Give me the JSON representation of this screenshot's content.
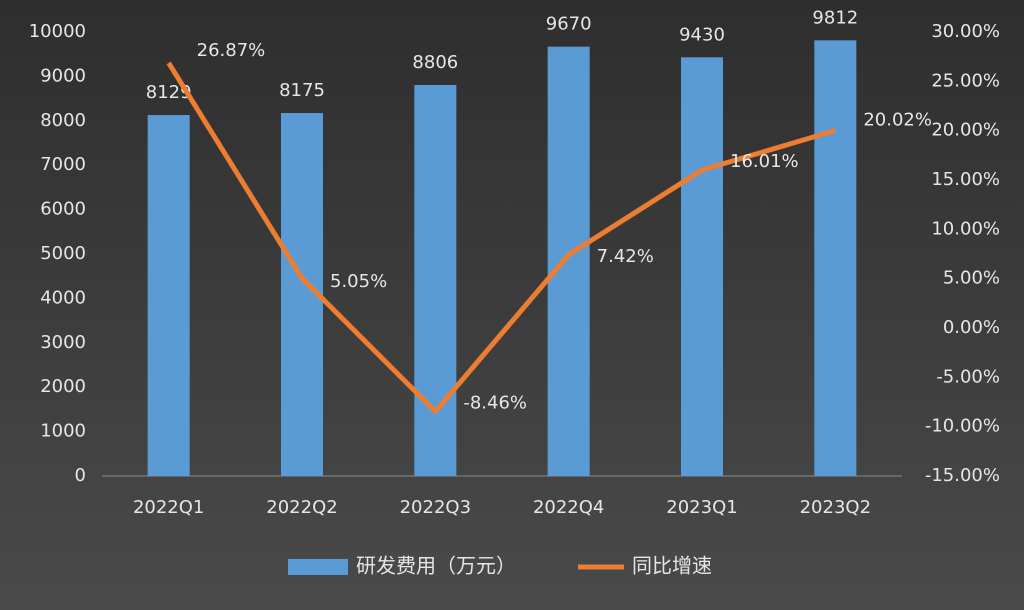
{
  "chart_data": {
    "type": "bar",
    "categories": [
      "2022Q1",
      "2022Q2",
      "2022Q3",
      "2022Q4",
      "2023Q1",
      "2023Q2"
    ],
    "series": [
      {
        "name": "研发费用（万元）",
        "color": "#5b9bd5",
        "type": "bar",
        "values": [
          8129,
          8175,
          8806,
          9670,
          9430,
          9812
        ]
      },
      {
        "name": "同比增速",
        "color": "#ed7d31",
        "type": "line",
        "axis": "y2",
        "values": [
          26.87,
          5.05,
          -8.46,
          7.42,
          16.01,
          20.02
        ],
        "value_labels": [
          "26.87%",
          "5.05%",
          "-8.46%",
          "7.42%",
          "16.01%",
          "20.02%"
        ]
      }
    ],
    "ylim": [
      0,
      10000
    ],
    "yticks": [
      0,
      1000,
      2000,
      3000,
      4000,
      5000,
      6000,
      7000,
      8000,
      9000,
      10000
    ],
    "y2lim": [
      -15,
      30
    ],
    "y2ticks": [
      {
        "value": -15,
        "label": "-15.00%"
      },
      {
        "value": -10,
        "label": "-10.00%"
      },
      {
        "value": -5,
        "label": "-5.00%"
      },
      {
        "value": 0,
        "label": "0.00%"
      },
      {
        "value": 5,
        "label": "5.00%"
      },
      {
        "value": 10,
        "label": "10.00%"
      },
      {
        "value": 15,
        "label": "15.00%"
      },
      {
        "value": 20,
        "label": "20.00%"
      },
      {
        "value": 25,
        "label": "25.00%"
      },
      {
        "value": 30,
        "label": "30.00%"
      }
    ],
    "grid": false,
    "legend": "bottom"
  }
}
